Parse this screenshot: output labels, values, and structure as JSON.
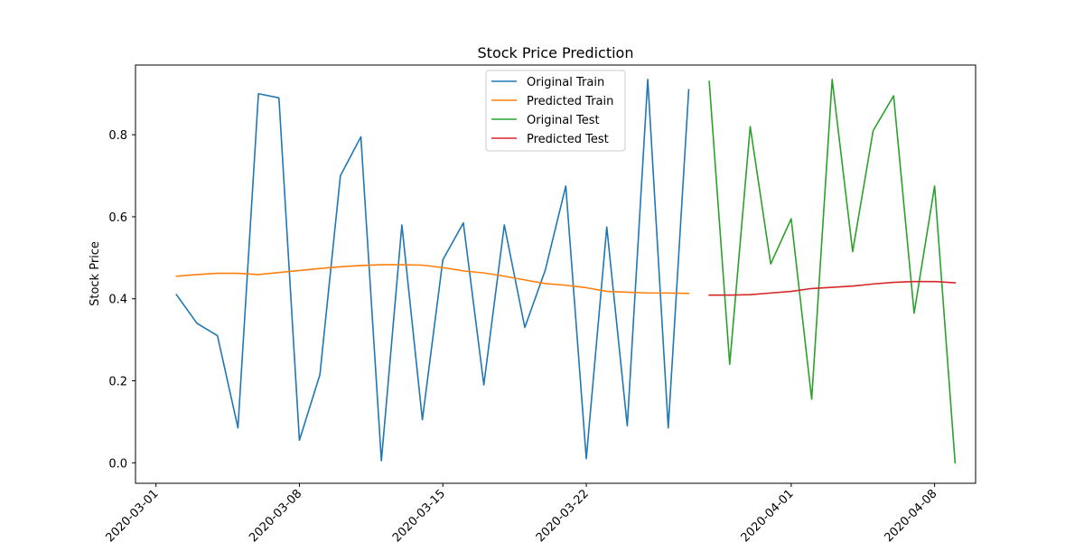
{
  "chart_data": {
    "type": "line",
    "title": "Stock Price Prediction",
    "xlabel": "",
    "ylabel": "Stock Price",
    "x_is_date": true,
    "xlim": [
      "2020-02-29",
      "2020-04-10"
    ],
    "ylim": [
      -0.05,
      0.97
    ],
    "x_ticks": [
      "2020-03-01",
      "2020-03-08",
      "2020-03-15",
      "2020-03-22",
      "2020-04-01",
      "2020-04-08"
    ],
    "y_ticks": [
      0.0,
      0.2,
      0.4,
      0.6,
      0.8
    ],
    "y_tick_labels": [
      "0.0",
      "0.2",
      "0.4",
      "0.6",
      "0.8"
    ],
    "grid": false,
    "legend_position": "top-center",
    "series": [
      {
        "name": "Original Train",
        "color": "#1f77b4",
        "x": [
          "2020-03-02",
          "2020-03-03",
          "2020-03-04",
          "2020-03-05",
          "2020-03-06",
          "2020-03-07",
          "2020-03-08",
          "2020-03-09",
          "2020-03-10",
          "2020-03-11",
          "2020-03-12",
          "2020-03-13",
          "2020-03-14",
          "2020-03-15",
          "2020-03-16",
          "2020-03-17",
          "2020-03-18",
          "2020-03-19",
          "2020-03-20",
          "2020-03-21",
          "2020-03-22",
          "2020-03-23",
          "2020-03-24",
          "2020-03-25",
          "2020-03-26",
          "2020-03-27"
        ],
        "y": [
          0.41,
          0.34,
          0.31,
          0.085,
          0.9,
          0.89,
          0.055,
          0.215,
          0.7,
          0.795,
          0.005,
          0.58,
          0.105,
          0.495,
          0.585,
          0.19,
          0.58,
          0.33,
          0.47,
          0.675,
          0.01,
          0.575,
          0.09,
          0.935,
          0.085,
          0.91
        ]
      },
      {
        "name": "Predicted Train",
        "color": "#ff7f0e",
        "x": [
          "2020-03-02",
          "2020-03-03",
          "2020-03-04",
          "2020-03-05",
          "2020-03-06",
          "2020-03-07",
          "2020-03-08",
          "2020-03-09",
          "2020-03-10",
          "2020-03-11",
          "2020-03-12",
          "2020-03-13",
          "2020-03-14",
          "2020-03-15",
          "2020-03-16",
          "2020-03-17",
          "2020-03-18",
          "2020-03-19",
          "2020-03-20",
          "2020-03-21",
          "2020-03-22",
          "2020-03-23",
          "2020-03-24",
          "2020-03-25",
          "2020-03-26",
          "2020-03-27"
        ],
        "y": [
          0.455,
          0.459,
          0.462,
          0.462,
          0.459,
          0.464,
          0.469,
          0.474,
          0.478,
          0.481,
          0.483,
          0.483,
          0.482,
          0.476,
          0.468,
          0.463,
          0.455,
          0.446,
          0.437,
          0.433,
          0.427,
          0.418,
          0.416,
          0.414,
          0.414,
          0.413
        ]
      },
      {
        "name": "Original Test",
        "color": "#2ca02c",
        "x": [
          "2020-03-28",
          "2020-03-29",
          "2020-03-30",
          "2020-03-31",
          "2020-04-01",
          "2020-04-02",
          "2020-04-03",
          "2020-04-04",
          "2020-04-05",
          "2020-04-06",
          "2020-04-07",
          "2020-04-08",
          "2020-04-09"
        ],
        "y": [
          0.93,
          0.24,
          0.82,
          0.485,
          0.595,
          0.155,
          0.935,
          0.515,
          0.81,
          0.895,
          0.365,
          0.675,
          0.0
        ]
      },
      {
        "name": "Predicted Test",
        "color": "#d62728",
        "x": [
          "2020-03-28",
          "2020-03-29",
          "2020-03-30",
          "2020-03-31",
          "2020-04-01",
          "2020-04-02",
          "2020-04-03",
          "2020-04-04",
          "2020-04-05",
          "2020-04-06",
          "2020-04-07",
          "2020-04-08",
          "2020-04-09"
        ],
        "y": [
          0.409,
          0.409,
          0.41,
          0.414,
          0.418,
          0.425,
          0.428,
          0.431,
          0.436,
          0.44,
          0.442,
          0.442,
          0.439
        ]
      }
    ]
  }
}
